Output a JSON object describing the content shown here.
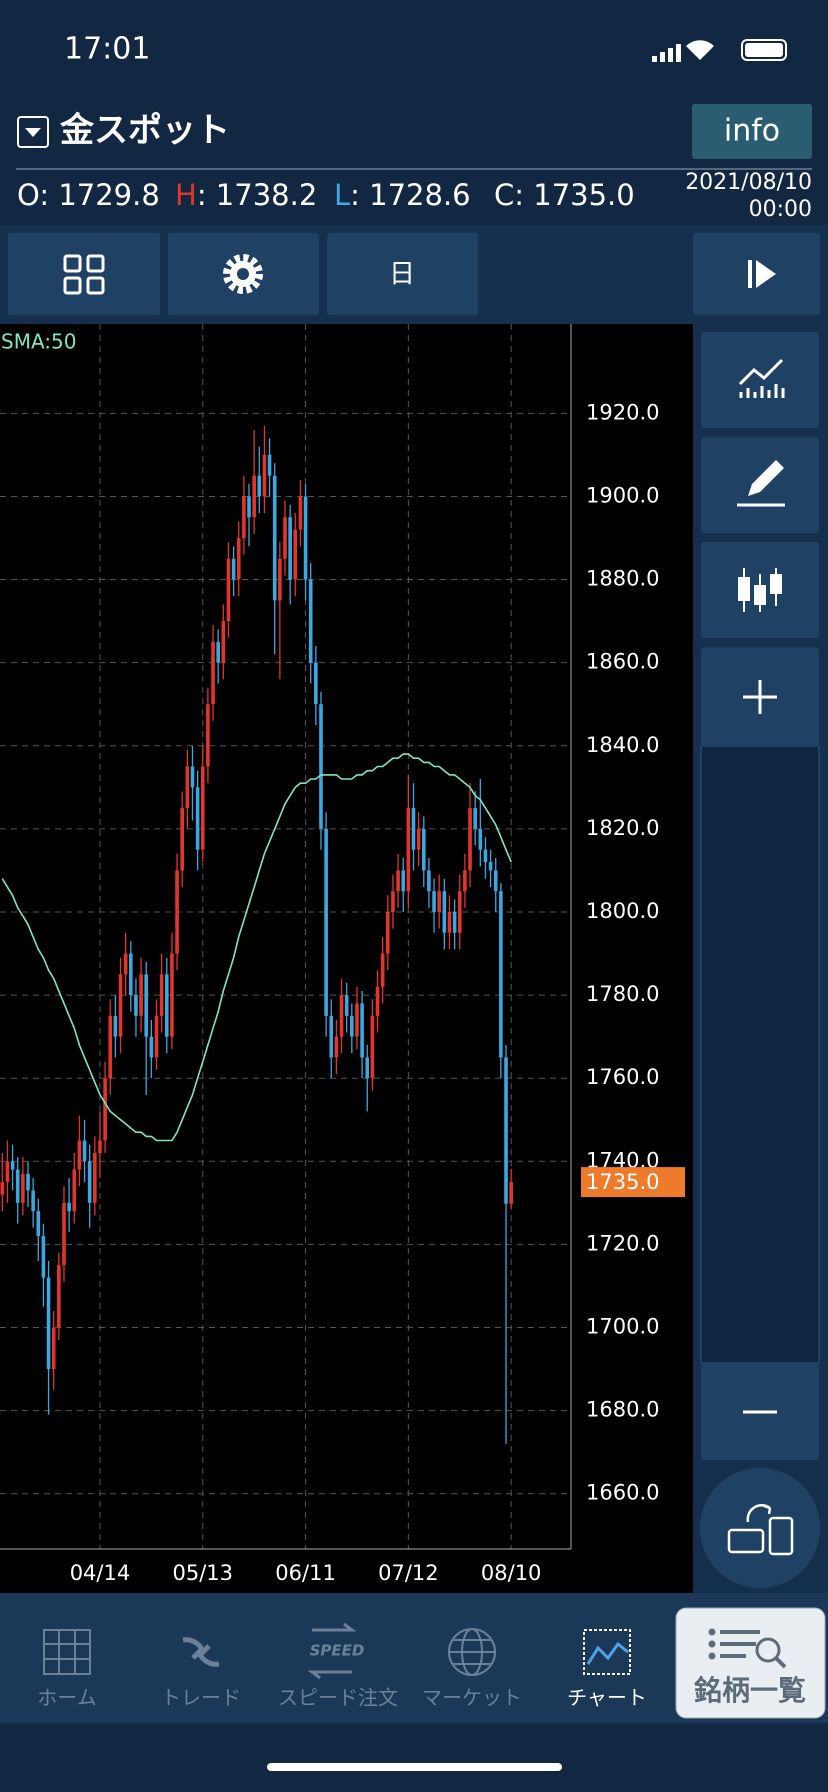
{
  "status_bar": {
    "time": "17:01"
  },
  "header": {
    "title": "金スポット",
    "info_button": "info",
    "ohlc": [
      {
        "key": "O",
        "text": ": 1729.8"
      },
      {
        "key": "H",
        "text": ": 1738.2"
      },
      {
        "key": "L",
        "text": ": 1728.6"
      },
      {
        "key": "C",
        "text": ": 1735.0"
      }
    ],
    "date": "2021/08/10",
    "time": "00:00"
  },
  "toolbar": {
    "period": "日"
  },
  "chart_data": {
    "type": "candlestick",
    "up_color": "#e2352b",
    "down_color": "#3aa8e2",
    "ylim": [
      1646.7,
      1941.5
    ],
    "yticks": [
      {
        "value": 1660,
        "label": "1660.0"
      },
      {
        "value": 1680,
        "label": "1680.0"
      },
      {
        "value": 1700,
        "label": "1700.0"
      },
      {
        "value": 1720,
        "label": "1720.0"
      },
      {
        "value": 1740,
        "label": "1740.0"
      },
      {
        "value": 1760,
        "label": "1760.0"
      },
      {
        "value": 1780,
        "label": "1780.0"
      },
      {
        "value": 1800,
        "label": "1800.0"
      },
      {
        "value": 1820,
        "label": "1820.0"
      },
      {
        "value": 1840,
        "label": "1840.0"
      },
      {
        "value": 1860,
        "label": "1860.0"
      },
      {
        "value": 1880,
        "label": "1880.0"
      },
      {
        "value": 1900,
        "label": "1900.0"
      },
      {
        "value": 1920,
        "label": "1920.0"
      }
    ],
    "grid": true,
    "categories": [
      null,
      null,
      null,
      null,
      null,
      null,
      null,
      null,
      null,
      null,
      null,
      null,
      null,
      null,
      null,
      null,
      null,
      null,
      null,
      "04/14",
      null,
      null,
      null,
      null,
      null,
      null,
      null,
      null,
      null,
      null,
      null,
      null,
      null,
      null,
      null,
      null,
      null,
      null,
      null,
      "05/13",
      null,
      null,
      null,
      null,
      null,
      null,
      null,
      null,
      null,
      null,
      null,
      null,
      null,
      null,
      null,
      null,
      null,
      null,
      null,
      "06/11",
      null,
      null,
      null,
      null,
      null,
      null,
      null,
      null,
      null,
      null,
      null,
      null,
      null,
      null,
      null,
      null,
      null,
      null,
      null,
      "07/12",
      null,
      null,
      null,
      null,
      null,
      null,
      null,
      null,
      null,
      null,
      null,
      null,
      null,
      null,
      null,
      null,
      null,
      null,
      null,
      "08/10"
    ],
    "candles": [
      [
        1732,
        1742,
        1728,
        1735
      ],
      [
        1735,
        1745,
        1730,
        1740
      ],
      [
        1740,
        1744,
        1733,
        1738
      ],
      [
        1738,
        1741,
        1725,
        1730
      ],
      [
        1730,
        1741,
        1727,
        1737
      ],
      [
        1737,
        1740,
        1729,
        1733
      ],
      [
        1733,
        1736,
        1724,
        1728
      ],
      [
        1728,
        1731,
        1716,
        1722
      ],
      [
        1722,
        1725,
        1705,
        1712
      ],
      [
        1712,
        1716,
        1679,
        1690
      ],
      [
        1690,
        1704,
        1685,
        1700
      ],
      [
        1700,
        1718,
        1697,
        1715
      ],
      [
        1715,
        1734,
        1711,
        1730
      ],
      [
        1730,
        1736,
        1723,
        1728
      ],
      [
        1728,
        1742,
        1725,
        1738
      ],
      [
        1738,
        1751,
        1734,
        1745
      ],
      [
        1745,
        1750,
        1735,
        1740
      ],
      [
        1740,
        1744,
        1724,
        1730
      ],
      [
        1730,
        1746,
        1727,
        1742
      ],
      [
        1742,
        1752,
        1736,
        1745
      ],
      [
        1745,
        1764,
        1742,
        1760
      ],
      [
        1760,
        1779,
        1756,
        1775
      ],
      [
        1775,
        1780,
        1765,
        1770
      ],
      [
        1770,
        1789,
        1766,
        1785
      ],
      [
        1785,
        1795,
        1780,
        1790
      ],
      [
        1790,
        1793,
        1776,
        1780
      ],
      [
        1780,
        1784,
        1770,
        1775
      ],
      [
        1775,
        1789,
        1771,
        1785
      ],
      [
        1785,
        1788,
        1756,
        1770
      ],
      [
        1770,
        1774,
        1760,
        1765
      ],
      [
        1765,
        1779,
        1762,
        1775
      ],
      [
        1775,
        1790,
        1771,
        1785
      ],
      [
        1785,
        1789,
        1766,
        1770
      ],
      [
        1770,
        1795,
        1767,
        1790
      ],
      [
        1790,
        1814,
        1786,
        1810
      ],
      [
        1810,
        1829,
        1806,
        1825
      ],
      [
        1825,
        1839,
        1820,
        1835
      ],
      [
        1835,
        1840,
        1822,
        1830
      ],
      [
        1830,
        1834,
        1810,
        1815
      ],
      [
        1815,
        1840,
        1812,
        1835
      ],
      [
        1835,
        1854,
        1831,
        1850
      ],
      [
        1850,
        1869,
        1846,
        1865
      ],
      [
        1865,
        1868,
        1855,
        1860
      ],
      [
        1860,
        1874,
        1856,
        1870
      ],
      [
        1870,
        1889,
        1866,
        1885
      ],
      [
        1885,
        1888,
        1876,
        1880
      ],
      [
        1880,
        1894,
        1876,
        1890
      ],
      [
        1890,
        1905,
        1886,
        1900
      ],
      [
        1900,
        1903,
        1888,
        1895
      ],
      [
        1895,
        1916,
        1891,
        1905
      ],
      [
        1905,
        1912,
        1896,
        1900
      ],
      [
        1900,
        1917,
        1896,
        1910
      ],
      [
        1910,
        1914,
        1900,
        1905
      ],
      [
        1905,
        1908,
        1862,
        1875
      ],
      [
        1875,
        1889,
        1856,
        1885
      ],
      [
        1885,
        1899,
        1881,
        1895
      ],
      [
        1895,
        1898,
        1874,
        1880
      ],
      [
        1880,
        1896,
        1876,
        1892
      ],
      [
        1892,
        1904,
        1888,
        1900
      ],
      [
        1900,
        1903,
        1875,
        1880
      ],
      [
        1880,
        1884,
        1855,
        1860
      ],
      [
        1860,
        1864,
        1845,
        1850
      ],
      [
        1850,
        1853,
        1815,
        1820
      ],
      [
        1820,
        1824,
        1770,
        1775
      ],
      [
        1775,
        1779,
        1760,
        1765
      ],
      [
        1765,
        1774,
        1761,
        1770
      ],
      [
        1770,
        1784,
        1766,
        1780
      ],
      [
        1780,
        1783,
        1771,
        1775
      ],
      [
        1775,
        1778,
        1766,
        1770
      ],
      [
        1770,
        1782,
        1767,
        1778
      ],
      [
        1778,
        1781,
        1760,
        1765
      ],
      [
        1765,
        1768,
        1752,
        1760
      ],
      [
        1760,
        1779,
        1757,
        1775
      ],
      [
        1775,
        1786,
        1771,
        1782
      ],
      [
        1782,
        1794,
        1778,
        1790
      ],
      [
        1790,
        1804,
        1786,
        1800
      ],
      [
        1800,
        1809,
        1796,
        1805
      ],
      [
        1805,
        1814,
        1801,
        1810
      ],
      [
        1810,
        1813,
        1800,
        1805
      ],
      [
        1805,
        1833,
        1801,
        1825
      ],
      [
        1825,
        1831,
        1810,
        1815
      ],
      [
        1815,
        1824,
        1811,
        1820
      ],
      [
        1820,
        1823,
        1806,
        1810
      ],
      [
        1810,
        1813,
        1801,
        1805
      ],
      [
        1805,
        1808,
        1795,
        1800
      ],
      [
        1800,
        1809,
        1796,
        1805
      ],
      [
        1805,
        1808,
        1791,
        1795
      ],
      [
        1795,
        1804,
        1791,
        1800
      ],
      [
        1800,
        1803,
        1791,
        1795
      ],
      [
        1795,
        1809,
        1791,
        1805
      ],
      [
        1805,
        1814,
        1801,
        1810
      ],
      [
        1810,
        1831,
        1806,
        1825
      ],
      [
        1825,
        1829,
        1816,
        1820
      ],
      [
        1820,
        1832,
        1811,
        1815
      ],
      [
        1815,
        1818,
        1808,
        1812
      ],
      [
        1812,
        1815,
        1806,
        1810
      ],
      [
        1810,
        1813,
        1800,
        1805
      ],
      [
        1805,
        1807,
        1760,
        1765
      ],
      [
        1765,
        1768,
        1672,
        1729.8
      ],
      [
        1729.8,
        1738.2,
        1728.6,
        1735.0
      ]
    ],
    "sma": {
      "name": "SMA:50",
      "color": "#7ee6c0",
      "values": [
        1808,
        1806,
        1804,
        1801,
        1799,
        1797,
        1794,
        1791,
        1789,
        1786,
        1784,
        1781,
        1778,
        1775,
        1772,
        1768,
        1765,
        1762,
        1759,
        1756,
        1754,
        1752,
        1751,
        1750,
        1749,
        1748,
        1747,
        1747,
        1746,
        1746,
        1745,
        1745,
        1745,
        1745,
        1747,
        1750,
        1753,
        1756,
        1760,
        1764,
        1768,
        1772,
        1776,
        1781,
        1785,
        1789,
        1794,
        1798,
        1802,
        1806,
        1810,
        1814,
        1817,
        1820,
        1823,
        1826,
        1828,
        1830,
        1831,
        1831,
        1832,
        1832,
        1833,
        1833,
        1833,
        1833,
        1832,
        1832,
        1832,
        1833,
        1833,
        1834,
        1834,
        1835,
        1835,
        1836,
        1837,
        1837,
        1838,
        1838,
        1837,
        1837,
        1836,
        1836,
        1835,
        1835,
        1834,
        1833,
        1833,
        1832,
        1831,
        1830,
        1828,
        1827,
        1825,
        1823,
        1821,
        1818,
        1815,
        1812
      ]
    },
    "last_price_label": "1735.0"
  },
  "tab_bar": {
    "speed_icon_text": "SPEED",
    "tabs": [
      "ホーム",
      "トレード",
      "スピード注文",
      "マーケット",
      "チャート"
    ],
    "list_button": "銘柄一覧"
  }
}
